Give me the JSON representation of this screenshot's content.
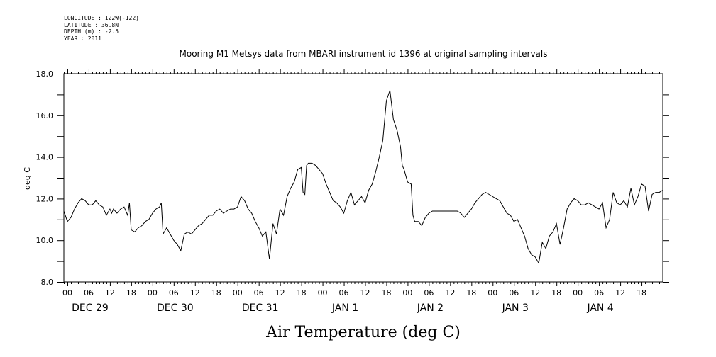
{
  "meta": {
    "longitude": "LONGITUDE : 122W(-122)",
    "latitude": "LATITUDE : 36.8N",
    "depth": "DEPTH (m) : -2.5",
    "year": "YEAR : 2011"
  },
  "chart_data": {
    "type": "line",
    "title": "Mooring M1 Metsys data from MBARI instrument id 1396 at original sampling intervals",
    "xlabel": "Air Temperature (deg C)",
    "ylabel": "deg C",
    "ylim": [
      8.0,
      18.0
    ],
    "xlim_hours": [
      -1,
      168
    ],
    "y_ticks": [
      "8.0",
      "10.0",
      "12.0",
      "14.0",
      "16.0",
      "18.0"
    ],
    "hour_tick_labels": [
      "00",
      "06",
      "12",
      "18",
      "00",
      "06",
      "12",
      "18",
      "00",
      "06",
      "12",
      "18",
      "00",
      "06",
      "12",
      "18",
      "00",
      "06",
      "12",
      "18",
      "00",
      "06",
      "12",
      "18",
      "00",
      "06",
      "12",
      "18"
    ],
    "day_labels": [
      "DEC 29",
      "DEC 30",
      "DEC 31",
      "JAN  1",
      "JAN  2",
      "JAN  3",
      "JAN  4"
    ],
    "grid": false,
    "series": [
      {
        "x": [
          -1,
          0,
          1,
          2,
          3,
          4,
          5,
          6,
          7,
          8,
          9,
          10,
          11,
          12,
          12.5,
          13,
          14,
          15,
          16,
          17,
          17.5,
          18,
          19,
          20,
          21,
          22,
          23,
          24,
          25,
          26,
          26.5,
          27,
          28,
          29,
          30,
          31,
          32,
          33,
          34,
          35,
          36,
          37,
          38,
          39,
          40,
          41,
          42,
          43,
          44,
          45,
          46,
          47,
          48,
          49,
          50,
          51,
          52,
          53,
          54,
          55,
          56,
          57,
          58,
          59,
          60,
          61,
          62,
          63,
          64,
          65,
          66,
          66.5,
          67,
          67.5,
          68,
          69,
          70,
          71,
          72,
          73,
          74,
          75,
          76,
          77,
          78,
          79,
          80,
          81,
          82,
          83,
          84,
          85,
          86,
          87,
          88,
          89,
          90,
          91,
          92,
          93,
          94,
          94.5,
          95,
          96,
          97,
          97.5,
          98,
          99,
          100,
          101,
          102,
          103,
          104,
          105,
          106,
          107,
          108,
          109,
          110,
          111,
          112,
          113,
          114,
          115,
          116,
          117,
          118,
          119,
          120,
          121,
          122,
          123,
          124,
          125,
          126,
          127,
          128,
          129,
          130,
          131,
          132,
          133,
          134,
          135,
          136,
          137,
          138,
          139,
          140,
          141,
          142,
          143,
          144,
          145,
          146,
          147,
          148,
          149,
          150,
          151,
          152,
          153,
          154,
          155,
          156,
          157,
          158,
          159,
          160,
          161,
          162,
          163,
          164,
          165,
          166,
          167,
          168
        ],
        "y": [
          11.4,
          10.9,
          11.1,
          11.5,
          11.8,
          12.0,
          11.9,
          11.7,
          11.7,
          11.9,
          11.7,
          11.6,
          11.2,
          11.5,
          11.3,
          11.5,
          11.3,
          11.5,
          11.6,
          11.2,
          11.8,
          10.5,
          10.4,
          10.6,
          10.7,
          10.9,
          11.0,
          11.3,
          11.5,
          11.6,
          11.8,
          10.3,
          10.6,
          10.3,
          10.0,
          9.8,
          9.5,
          10.3,
          10.4,
          10.3,
          10.5,
          10.7,
          10.8,
          11.0,
          11.2,
          11.2,
          11.4,
          11.5,
          11.3,
          11.4,
          11.5,
          11.5,
          11.6,
          12.1,
          11.9,
          11.5,
          11.3,
          10.9,
          10.6,
          10.2,
          10.4,
          9.1,
          10.8,
          10.3,
          11.5,
          11.2,
          12.1,
          12.5,
          12.8,
          13.4,
          13.5,
          12.3,
          12.2,
          13.6,
          13.7,
          13.7,
          13.6,
          13.4,
          13.2,
          12.7,
          12.3,
          11.9,
          11.8,
          11.6,
          11.3,
          11.9,
          12.3,
          11.7,
          11.9,
          12.1,
          11.8,
          12.4,
          12.7,
          13.3,
          14.0,
          14.8,
          16.7,
          17.2,
          15.8,
          15.3,
          14.5,
          13.6,
          13.4,
          12.8,
          12.7,
          11.2,
          10.9,
          10.9,
          10.7,
          11.1,
          11.3,
          11.4,
          11.4,
          11.4,
          11.4,
          11.4,
          11.4,
          11.4,
          11.4,
          11.3,
          11.1,
          11.3,
          11.5,
          11.8,
          12.0,
          12.2,
          12.3,
          12.2,
          12.1,
          12.0,
          11.9,
          11.6,
          11.3,
          11.2,
          10.9,
          11.0,
          10.6,
          10.2,
          9.6,
          9.3,
          9.2,
          8.9,
          9.9,
          9.6,
          10.2,
          10.4,
          10.8,
          9.8,
          10.6,
          11.5,
          11.8,
          12.0,
          11.9,
          11.7,
          11.7,
          11.8,
          11.7,
          11.6,
          11.5,
          11.8,
          10.6,
          11.0,
          12.3,
          11.8,
          11.7,
          11.9,
          11.6,
          12.5,
          11.7,
          12.1,
          12.7,
          12.6,
          11.4,
          12.2,
          12.3,
          12.3,
          12.4
        ]
      }
    ]
  }
}
